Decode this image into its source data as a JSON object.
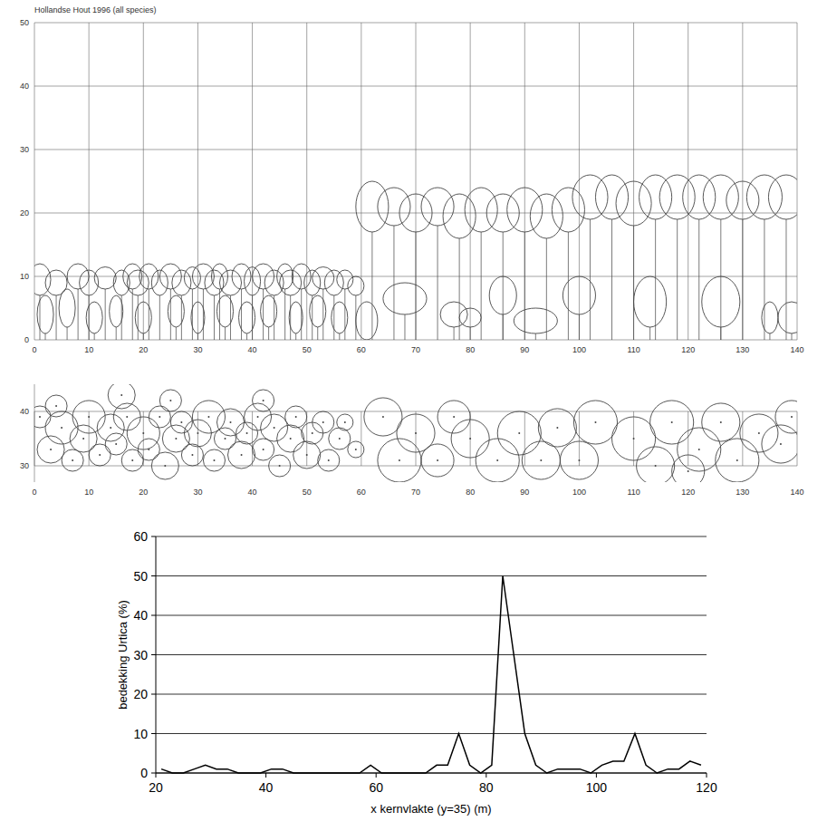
{
  "chart_data": [
    {
      "type": "profile",
      "title": "Hollandse Hout 1996  (all species)",
      "xlim": [
        0,
        140
      ],
      "ylim": [
        0,
        50
      ],
      "xticks": [
        0,
        10,
        20,
        30,
        40,
        50,
        60,
        70,
        80,
        90,
        100,
        110,
        120,
        130,
        140
      ],
      "yticks": [
        0,
        10,
        20,
        30,
        40,
        50
      ],
      "grid": true,
      "trees": {
        "x": [
          1,
          4,
          8,
          10,
          13,
          16,
          18,
          19,
          21,
          23,
          25,
          27,
          29,
          31,
          33,
          34,
          36,
          38,
          40,
          42,
          44,
          46,
          47,
          49,
          51,
          53,
          55,
          57,
          59,
          2,
          6,
          11,
          15,
          20,
          26,
          30,
          35,
          39,
          43,
          48,
          52,
          56,
          62,
          66,
          70,
          74,
          78,
          82,
          86,
          90,
          94,
          98,
          102,
          106,
          110,
          114,
          118,
          122,
          126,
          130,
          134,
          138,
          61,
          68,
          77,
          80,
          86,
          92,
          100,
          113,
          126,
          135,
          139
        ],
        "top": [
          12,
          11,
          12,
          11,
          11.5,
          11,
          12,
          11,
          12,
          11,
          12,
          11,
          11.5,
          12,
          11,
          12,
          11,
          12,
          11.5,
          12,
          11,
          12,
          11,
          12,
          11,
          11.5,
          11,
          11,
          10,
          7,
          8,
          6,
          7,
          6,
          7,
          6,
          7,
          6,
          7,
          6,
          7,
          6,
          25,
          24,
          23,
          24,
          23,
          24,
          23,
          24,
          23,
          24,
          26,
          26,
          25,
          26,
          26,
          26,
          26,
          25,
          26,
          26,
          6,
          9,
          6,
          5,
          10,
          5,
          10,
          10,
          10,
          6,
          6
        ],
        "bottom": [
          7,
          7,
          8,
          7,
          8,
          7,
          8,
          7,
          8,
          7,
          8,
          7,
          8,
          8,
          7,
          8,
          7,
          8,
          7,
          8,
          7,
          8,
          7,
          8,
          7,
          8,
          7,
          8,
          7,
          1,
          2,
          1,
          2,
          1,
          2,
          1,
          2,
          1,
          2,
          1,
          2,
          1,
          17,
          18,
          17,
          18,
          16,
          17,
          17,
          17,
          16,
          17,
          19,
          19,
          18,
          19,
          19,
          19,
          19,
          19,
          19,
          19,
          0,
          4,
          2,
          2,
          4,
          1,
          4,
          2,
          2,
          1,
          1
        ],
        "width": [
          4,
          4,
          4,
          3.5,
          4,
          3,
          3.5,
          4,
          3.5,
          3,
          4,
          3.5,
          3,
          4,
          3.5,
          3,
          4,
          3.5,
          3,
          4,
          3.5,
          3,
          4,
          3.5,
          3,
          4,
          3.5,
          3,
          3,
          3,
          3,
          3,
          2.5,
          3,
          3,
          2.5,
          3,
          3,
          3,
          2.5,
          3,
          3,
          6,
          6,
          6,
          6,
          6,
          6,
          6,
          6.5,
          6,
          6,
          6.5,
          6,
          6.5,
          6,
          6.5,
          6,
          6.5,
          6,
          6.5,
          6.5,
          4,
          8,
          5,
          4,
          5,
          8,
          6,
          6,
          7,
          3,
          5
        ]
      }
    },
    {
      "type": "crown_map",
      "xlim": [
        0,
        140
      ],
      "ylim": [
        27,
        45
      ],
      "xticks": [
        0,
        10,
        20,
        30,
        40,
        50,
        60,
        70,
        80,
        90,
        100,
        110,
        120,
        130,
        140
      ],
      "yticks": [
        30,
        40
      ],
      "grid": true,
      "crowns": {
        "x": [
          1,
          3,
          5,
          7,
          9,
          10,
          12,
          14,
          15,
          17,
          18,
          20,
          21,
          23,
          24,
          26,
          27,
          29,
          30,
          32,
          33,
          35,
          36,
          38,
          39,
          41,
          42,
          44,
          45,
          47,
          48,
          50,
          51,
          53,
          54,
          56,
          57,
          59,
          16,
          4,
          25,
          42,
          64,
          67,
          70,
          74,
          77,
          80,
          85,
          89,
          93,
          96,
          100,
          103,
          110,
          114,
          117,
          122,
          126,
          129,
          133,
          137,
          139,
          120
        ],
        "y": [
          39,
          33,
          37,
          31,
          35,
          39,
          32,
          37,
          34,
          39,
          31,
          36,
          33,
          39,
          30,
          35,
          38,
          32,
          36,
          39,
          31,
          35,
          38,
          32,
          36,
          39,
          33,
          37,
          30,
          35,
          39,
          32,
          36,
          38,
          31,
          35,
          38,
          33,
          43,
          41,
          42,
          42,
          39,
          31,
          36,
          31,
          39,
          35,
          31,
          36,
          31,
          37,
          31,
          38,
          35,
          30,
          38,
          33,
          38,
          31,
          36,
          34,
          39,
          29
        ],
        "r": [
          2,
          2.5,
          3,
          2,
          2.5,
          3,
          2,
          2.5,
          2,
          2.5,
          2,
          3,
          2,
          2,
          2.5,
          2.5,
          2,
          2,
          2.5,
          3,
          2,
          2,
          2.5,
          2.5,
          2,
          2.5,
          2,
          2.5,
          2,
          2.5,
          2,
          2.5,
          2,
          2,
          2,
          2,
          1.5,
          1.5,
          2.5,
          2,
          2,
          2,
          3.5,
          4,
          3.5,
          3,
          3,
          3.5,
          4,
          4,
          3.5,
          3.5,
          3.5,
          4,
          4,
          3.5,
          4,
          4,
          3.5,
          4,
          3.5,
          3.5,
          3,
          3
        ]
      }
    },
    {
      "type": "line",
      "xlabel": "x kernvlakte (y=35) (m)",
      "ylabel": "bedekking Urtica (%)",
      "xlim": [
        20,
        120
      ],
      "ylim": [
        0,
        60
      ],
      "xticks": [
        20,
        40,
        60,
        80,
        100,
        120
      ],
      "yticks": [
        0,
        10,
        20,
        30,
        40,
        50,
        60
      ],
      "grid": true,
      "color": "#000000",
      "x": [
        21,
        23,
        25,
        27,
        29,
        31,
        33,
        35,
        37,
        39,
        41,
        43,
        45,
        47,
        49,
        51,
        53,
        55,
        57,
        59,
        61,
        63,
        65,
        67,
        69,
        71,
        73,
        75,
        77,
        79,
        81,
        83,
        85,
        87,
        89,
        91,
        93,
        95,
        97,
        99,
        101,
        103,
        105,
        107,
        109,
        111,
        113,
        115,
        117,
        119
      ],
      "values": [
        1,
        0,
        0,
        1,
        2,
        1,
        1,
        0,
        0,
        0,
        1,
        1,
        0,
        0,
        0,
        0,
        0,
        0,
        0,
        2,
        0,
        0,
        0,
        0,
        0,
        2,
        2,
        10,
        2,
        0,
        2,
        50,
        30,
        10,
        2,
        0,
        1,
        1,
        1,
        0,
        2,
        3,
        3,
        10,
        2,
        0,
        1,
        1,
        3,
        2
      ]
    }
  ]
}
